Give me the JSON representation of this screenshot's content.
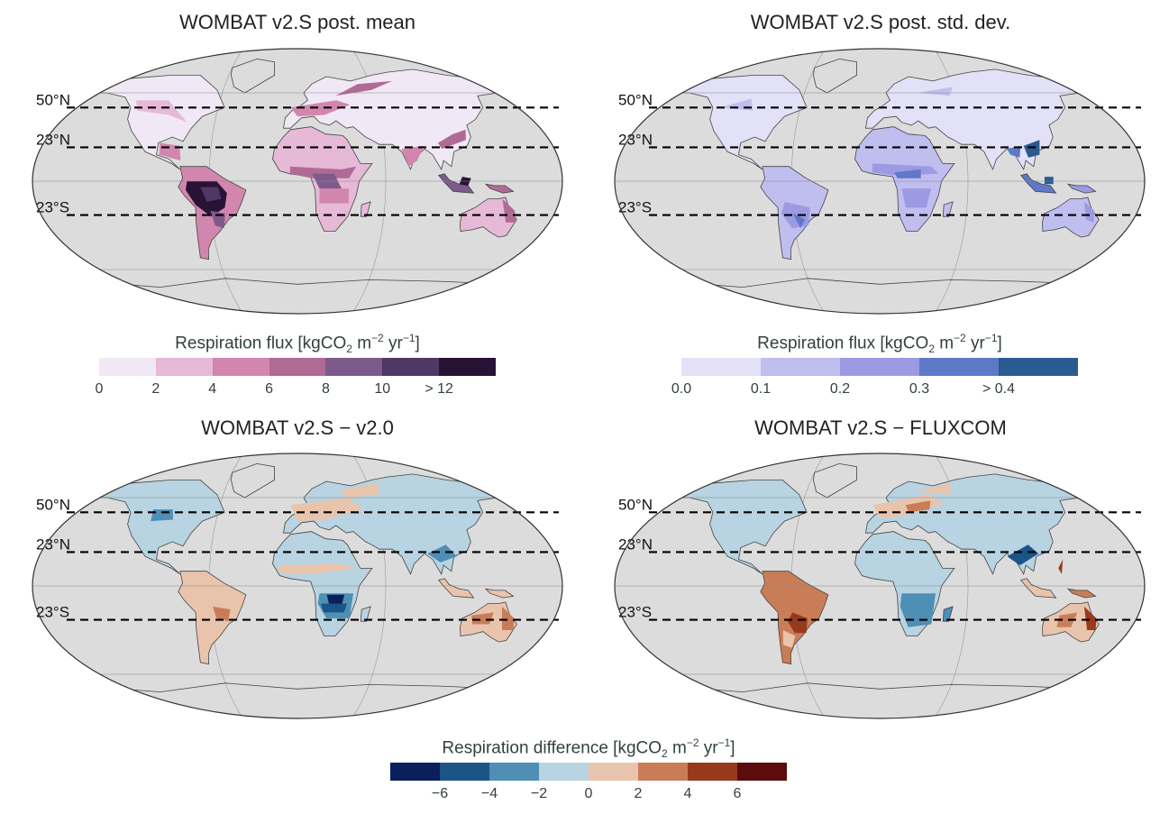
{
  "panels": [
    {
      "id": "mean",
      "title": "WOMBAT v2.S post. mean",
      "palette": "purple"
    },
    {
      "id": "std",
      "title": "WOMBAT v2.S post. std. dev.",
      "palette": "blue"
    },
    {
      "id": "diff1",
      "title": "WOMBAT v2.S − v2.0",
      "palette": "diverging1"
    },
    {
      "id": "diff2",
      "title": "WOMBAT v2.S − FLUXCOM",
      "palette": "diverging2"
    }
  ],
  "lat_lines": {
    "labels": [
      "50°N",
      "23°N",
      "23°S"
    ],
    "values_deg": [
      50,
      23,
      -23
    ]
  },
  "colorbars": {
    "mean": {
      "title_prefix": "Respiration flux [kgCO",
      "title_sub": "2",
      "title_mid": " m",
      "title_sup1": "−2",
      "title_mid2": " yr",
      "title_sup2": "−1",
      "title_suffix": "]",
      "colors": [
        "#f1e8f5",
        "#e6b9d6",
        "#d286ad",
        "#b06b95",
        "#7d5a8a",
        "#4e3864",
        "#281236"
      ],
      "ticks": [
        "0",
        "2",
        "4",
        "6",
        "8",
        "10",
        "> 12"
      ]
    },
    "std": {
      "title_prefix": "Respiration flux [kgCO",
      "title_sub": "2",
      "title_mid": " m",
      "title_sup1": "−2",
      "title_mid2": " yr",
      "title_sup2": "−1",
      "title_suffix": "]",
      "colors": [
        "#e2e1f7",
        "#c0bdef",
        "#9b9ae2",
        "#5f79c9",
        "#2a5a92"
      ],
      "ticks": [
        "0.0",
        "0.1",
        "0.2",
        "0.3",
        "> 0.4"
      ]
    },
    "diff": {
      "title_prefix": "Respiration difference [kgCO",
      "title_sub": "2",
      "title_mid": " m",
      "title_sup1": "−2",
      "title_mid2": " yr",
      "title_sup2": "−1",
      "title_suffix": "]",
      "colors": [
        "#0b1f5c",
        "#1b5588",
        "#4f8eb5",
        "#b8d3e1",
        "#e9c4ac",
        "#c97d57",
        "#973a1b",
        "#5c0c0b"
      ],
      "ticks": [
        "−6",
        "−4",
        "−2",
        "0",
        "2",
        "4",
        "6"
      ]
    }
  },
  "colors": {
    "ocean": "#dcdcdc",
    "outline": "#444444",
    "dash": "#000000"
  }
}
